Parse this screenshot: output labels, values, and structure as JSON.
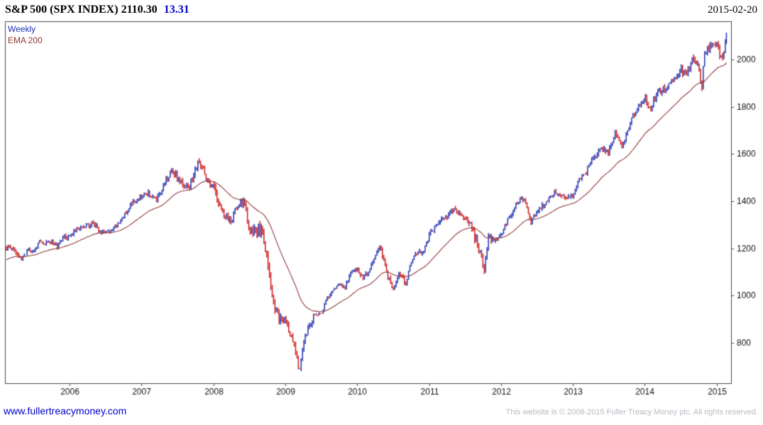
{
  "header": {
    "title": "S&P 500 (SPX INDEX) 2110.30",
    "change": "13.31",
    "date": "2015-02-20"
  },
  "legend": {
    "weekly": "Weekly",
    "ema": "EMA 200"
  },
  "footer": {
    "link": "www.fullertreacymoney.com",
    "copyright": "This website is © 2008-2015 Fuller Treacy Money plc. All rights reserved."
  },
  "colors": {
    "up": "#1c2fb0",
    "down": "#cc1616",
    "ema": "#8f3636",
    "accent_blue": "#0000cc",
    "border": "#444444",
    "tick_text": "#111111",
    "copyright_gray": "#b9b9c2"
  },
  "chart_data": {
    "type": "candlestick",
    "title": "S&P 500 (SPX INDEX)",
    "interval": "Weekly",
    "overlay": "EMA 200",
    "last_price": 2110.3,
    "last_change": 13.31,
    "last_date": "2015-02-20",
    "x_range": [
      2005.1,
      2015.2
    ],
    "data_start": 2005.12,
    "data_end": 2015.135,
    "ylim": [
      628,
      2163
    ],
    "y_ticks": [
      800,
      1000,
      1200,
      1400,
      1600,
      1800,
      2000
    ],
    "x_ticks": [
      2006,
      2007,
      2008,
      2009,
      2010,
      2011,
      2012,
      2013,
      2014,
      2015
    ],
    "ema_span_weeks": 40,
    "anchors_weekly_close": [
      [
        2005.12,
        1200
      ],
      [
        2005.17,
        1204
      ],
      [
        2005.25,
        1181
      ],
      [
        2005.33,
        1157
      ],
      [
        2005.42,
        1192
      ],
      [
        2005.5,
        1191
      ],
      [
        2005.58,
        1234
      ],
      [
        2005.67,
        1220
      ],
      [
        2005.75,
        1229
      ],
      [
        2005.83,
        1207
      ],
      [
        2005.92,
        1249
      ],
      [
        2006.0,
        1248
      ],
      [
        2006.08,
        1280
      ],
      [
        2006.17,
        1281
      ],
      [
        2006.25,
        1295
      ],
      [
        2006.33,
        1311
      ],
      [
        2006.42,
        1270
      ],
      [
        2006.5,
        1270
      ],
      [
        2006.58,
        1277
      ],
      [
        2006.67,
        1304
      ],
      [
        2006.75,
        1336
      ],
      [
        2006.83,
        1378
      ],
      [
        2006.92,
        1401
      ],
      [
        2007.0,
        1418
      ],
      [
        2007.08,
        1438
      ],
      [
        2007.17,
        1407
      ],
      [
        2007.25,
        1421
      ],
      [
        2007.33,
        1482
      ],
      [
        2007.42,
        1531
      ],
      [
        2007.5,
        1503
      ],
      [
        2007.58,
        1455
      ],
      [
        2007.67,
        1474
      ],
      [
        2007.75,
        1527
      ],
      [
        2007.79,
        1562
      ],
      [
        2007.83,
        1549
      ],
      [
        2007.92,
        1481
      ],
      [
        2008.0,
        1468
      ],
      [
        2008.08,
        1379
      ],
      [
        2008.17,
        1331
      ],
      [
        2008.25,
        1323
      ],
      [
        2008.33,
        1386
      ],
      [
        2008.42,
        1400
      ],
      [
        2008.5,
        1280
      ],
      [
        2008.58,
        1267
      ],
      [
        2008.67,
        1283
      ],
      [
        2008.75,
        1166
      ],
      [
        2008.83,
        969
      ],
      [
        2008.92,
        896
      ],
      [
        2009.0,
        903
      ],
      [
        2009.08,
        826
      ],
      [
        2009.17,
        735
      ],
      [
        2009.19,
        680
      ],
      [
        2009.25,
        798
      ],
      [
        2009.33,
        873
      ],
      [
        2009.42,
        919
      ],
      [
        2009.5,
        919
      ],
      [
        2009.58,
        987
      ],
      [
        2009.67,
        1021
      ],
      [
        2009.75,
        1057
      ],
      [
        2009.83,
        1036
      ],
      [
        2009.92,
        1096
      ],
      [
        2010.0,
        1115
      ],
      [
        2010.08,
        1074
      ],
      [
        2010.17,
        1104
      ],
      [
        2010.25,
        1169
      ],
      [
        2010.31,
        1214
      ],
      [
        2010.33,
        1187
      ],
      [
        2010.42,
        1089
      ],
      [
        2010.51,
        1023
      ],
      [
        2010.58,
        1102
      ],
      [
        2010.67,
        1049
      ],
      [
        2010.75,
        1141
      ],
      [
        2010.83,
        1183
      ],
      [
        2010.92,
        1181
      ],
      [
        2011.0,
        1258
      ],
      [
        2011.08,
        1286
      ],
      [
        2011.17,
        1327
      ],
      [
        2011.25,
        1326
      ],
      [
        2011.33,
        1364
      ],
      [
        2011.42,
        1345
      ],
      [
        2011.5,
        1321
      ],
      [
        2011.58,
        1292
      ],
      [
        2011.67,
        1219
      ],
      [
        2011.75,
        1131
      ],
      [
        2011.76,
        1099
      ],
      [
        2011.83,
        1253
      ],
      [
        2011.92,
        1247
      ],
      [
        2012.0,
        1258
      ],
      [
        2012.08,
        1312
      ],
      [
        2012.17,
        1366
      ],
      [
        2012.25,
        1408
      ],
      [
        2012.33,
        1398
      ],
      [
        2012.42,
        1310
      ],
      [
        2012.5,
        1362
      ],
      [
        2012.58,
        1379
      ],
      [
        2012.67,
        1407
      ],
      [
        2012.75,
        1441
      ],
      [
        2012.83,
        1412
      ],
      [
        2012.92,
        1416
      ],
      [
        2013.0,
        1426
      ],
      [
        2013.08,
        1498
      ],
      [
        2013.17,
        1515
      ],
      [
        2013.25,
        1569
      ],
      [
        2013.33,
        1598
      ],
      [
        2013.42,
        1631
      ],
      [
        2013.5,
        1606
      ],
      [
        2013.58,
        1686
      ],
      [
        2013.67,
        1633
      ],
      [
        2013.75,
        1682
      ],
      [
        2013.83,
        1757
      ],
      [
        2013.92,
        1806
      ],
      [
        2014.0,
        1848
      ],
      [
        2014.08,
        1783
      ],
      [
        2014.17,
        1859
      ],
      [
        2014.25,
        1872
      ],
      [
        2014.33,
        1884
      ],
      [
        2014.42,
        1924
      ],
      [
        2014.5,
        1960
      ],
      [
        2014.58,
        1931
      ],
      [
        2014.67,
        2003
      ],
      [
        2014.75,
        1972
      ],
      [
        2014.79,
        1880
      ],
      [
        2014.83,
        2018
      ],
      [
        2014.92,
        2068
      ],
      [
        2015.0,
        2059
      ],
      [
        2015.08,
        1995
      ],
      [
        2015.135,
        2110.3
      ]
    ]
  }
}
